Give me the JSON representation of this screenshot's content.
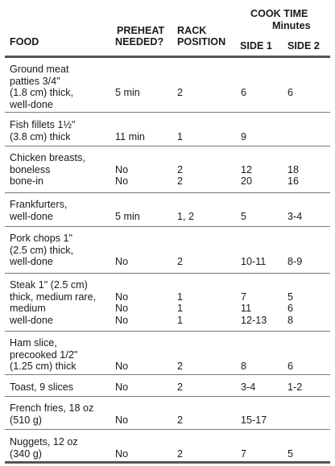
{
  "header": {
    "cook_time_line1": "COOK TIME",
    "cook_time_line2": "Minutes",
    "food": "FOOD",
    "preheat_line1": "PREHEAT",
    "preheat_line2": "NEEDED?",
    "rack_line1": "RACK",
    "rack_line2": "POSITION",
    "side1": "SIDE 1",
    "side2": "SIDE 2"
  },
  "rows": [
    {
      "food": [
        "Ground meat",
        "patties 3/4\"",
        "(1.8 cm) thick,",
        "well-done"
      ],
      "preheat": [
        "",
        "",
        "5 min",
        ""
      ],
      "rack": [
        "",
        "",
        "2",
        ""
      ],
      "side1": [
        "",
        "",
        "6",
        ""
      ],
      "side2": [
        "",
        "",
        "6",
        ""
      ]
    },
    {
      "food": [
        "Fish fillets 1½\"",
        "(3.8 cm) thick"
      ],
      "preheat": [
        "",
        "11 min"
      ],
      "rack": [
        "",
        "1"
      ],
      "side1": [
        "",
        "9"
      ],
      "side2": [
        "",
        ""
      ]
    },
    {
      "food": [
        "Chicken breasts,",
        "boneless",
        "bone-in"
      ],
      "preheat": [
        "",
        "No",
        "No"
      ],
      "rack": [
        "",
        "2",
        "2"
      ],
      "side1": [
        "",
        "12",
        "20"
      ],
      "side2": [
        "",
        "18",
        "16"
      ]
    },
    {
      "food": [
        "Frankfurters,",
        "well-done"
      ],
      "preheat": [
        "",
        "5 min"
      ],
      "rack": [
        "",
        "1, 2"
      ],
      "side1": [
        "",
        "5"
      ],
      "side2": [
        "",
        "3-4"
      ]
    },
    {
      "food": [
        "Pork chops 1\"",
        "(2.5 cm) thick,",
        "well-done"
      ],
      "preheat": [
        "",
        "",
        "No"
      ],
      "rack": [
        "",
        "",
        "2"
      ],
      "side1": [
        "",
        "",
        "10-11"
      ],
      "side2": [
        "",
        "",
        "8-9"
      ]
    },
    {
      "food": [
        "Steak 1\" (2.5 cm)",
        "thick, medium rare,",
        "medium",
        "well-done"
      ],
      "preheat": [
        "",
        "No",
        "No",
        "No"
      ],
      "rack": [
        "",
        "1",
        "1",
        "1"
      ],
      "side1": [
        "",
        "7",
        "11",
        "12-13"
      ],
      "side2": [
        "",
        "5",
        "6",
        "8"
      ]
    },
    {
      "food": [
        "Ham slice,",
        "precooked 1/2\"",
        "(1.25 cm) thick"
      ],
      "preheat": [
        "",
        "",
        "No"
      ],
      "rack": [
        "",
        "",
        "2"
      ],
      "side1": [
        "",
        "",
        "8"
      ],
      "side2": [
        "",
        "",
        "6"
      ]
    },
    {
      "food": [
        "Toast, 9 slices"
      ],
      "preheat": [
        "No"
      ],
      "rack": [
        "2"
      ],
      "side1": [
        "3-4"
      ],
      "side2": [
        "1-2"
      ]
    },
    {
      "food": [
        "French fries, 18 oz",
        "(510 g)"
      ],
      "preheat": [
        "",
        "No"
      ],
      "rack": [
        "",
        "2"
      ],
      "side1": [
        "",
        "15-17"
      ],
      "side2": [
        "",
        ""
      ]
    },
    {
      "food": [
        "Nuggets, 12 oz",
        "(340 g)"
      ],
      "preheat": [
        "",
        "No"
      ],
      "rack": [
        "",
        "2"
      ],
      "side1": [
        "",
        "7"
      ],
      "side2": [
        "",
        "5"
      ]
    }
  ]
}
